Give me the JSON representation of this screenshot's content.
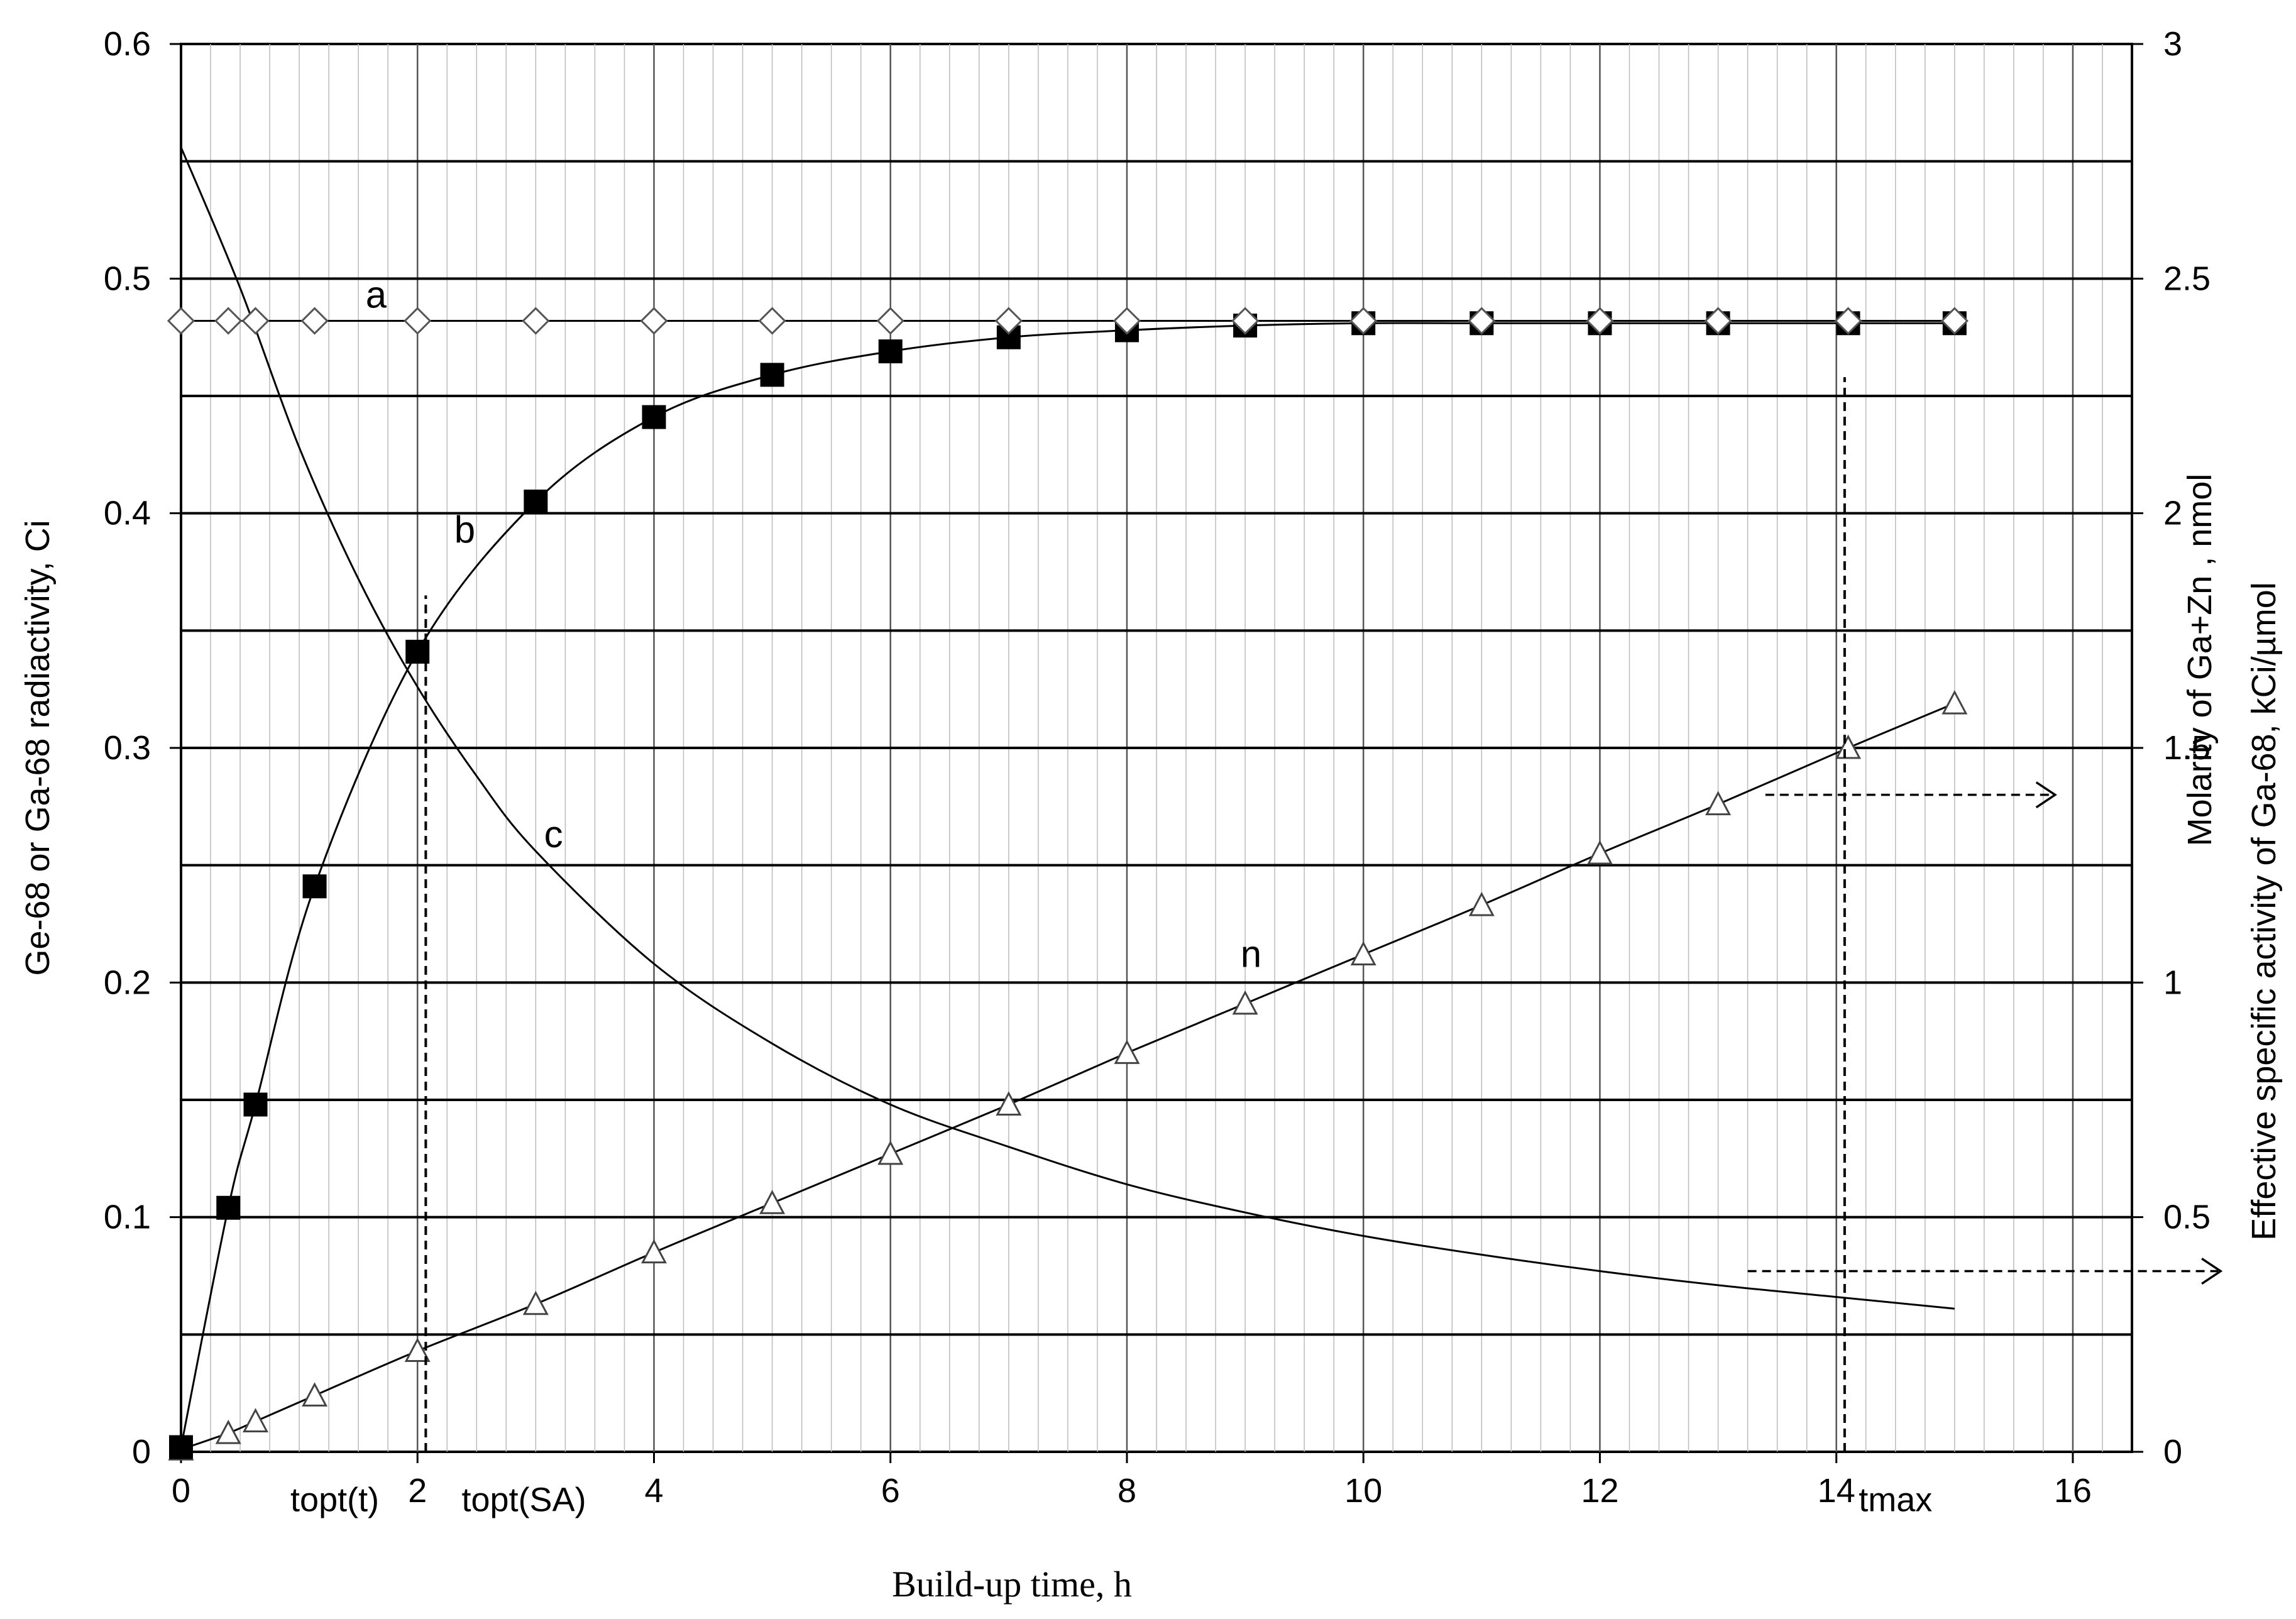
{
  "chart_data": {
    "type": "line",
    "xlabel": "Build-up time, h",
    "ylabel_left": "Ge-68 or Ga-68 radiactivity, Ci",
    "ylabel_right": [
      "Molarity  of Ga+Zn , nmol",
      "Effective specific activity of Ga-68, kCi/µmol"
    ],
    "xlim": [
      0,
      16.5
    ],
    "ylim_left": [
      0,
      0.6
    ],
    "ylim_right": [
      0,
      3
    ],
    "x_ticks": [
      "0",
      "2",
      "4",
      "6",
      "8",
      "10",
      "12",
      "14",
      "16"
    ],
    "y_left_ticks": [
      "0",
      "0.1",
      "0.2",
      "0.3",
      "0.4",
      "0.5",
      "0.6"
    ],
    "y_right_ticks": [
      "0",
      "0.5",
      "1",
      "1.5",
      "2",
      "2.5",
      "3"
    ],
    "grid": true,
    "series": [
      {
        "name": "a",
        "axis": "left",
        "marker": "diamond-open",
        "x": [
          0,
          0.4,
          0.63,
          1.13,
          2,
          3,
          4,
          5,
          6,
          7,
          8,
          9,
          10,
          11,
          12,
          13,
          14.1,
          15
        ],
        "y": [
          0.482,
          0.482,
          0.482,
          0.482,
          0.482,
          0.482,
          0.482,
          0.482,
          0.482,
          0.482,
          0.482,
          0.482,
          0.482,
          0.482,
          0.482,
          0.482,
          0.482,
          0.482
        ]
      },
      {
        "name": "b",
        "axis": "left",
        "marker": "square-filled",
        "x": [
          0,
          0.4,
          0.63,
          1.13,
          2,
          3,
          4,
          5,
          6,
          7,
          8,
          9,
          10,
          11,
          12,
          13,
          14.1,
          15
        ],
        "y": [
          0.002,
          0.104,
          0.148,
          0.241,
          0.341,
          0.405,
          0.441,
          0.459,
          0.469,
          0.475,
          0.478,
          0.48,
          0.481,
          0.481,
          0.481,
          0.481,
          0.481,
          0.481
        ]
      },
      {
        "name": "c",
        "axis": "right",
        "marker": "none",
        "x": [
          0,
          0.5,
          1,
          1.5,
          2,
          2.5,
          3,
          4,
          5,
          6,
          7,
          8,
          9,
          10,
          11,
          12,
          13,
          14,
          15
        ],
        "y": [
          2.78,
          2.48,
          2.14,
          1.86,
          1.63,
          1.44,
          1.28,
          1.04,
          0.87,
          0.74,
          0.65,
          0.57,
          0.51,
          0.46,
          0.42,
          0.385,
          0.355,
          0.33,
          0.305
        ]
      },
      {
        "name": "n",
        "axis": "left",
        "marker": "triangle-open",
        "x": [
          0,
          0.4,
          0.63,
          1.13,
          2,
          3,
          4,
          5,
          6,
          7,
          8,
          9,
          10,
          11,
          12,
          13,
          14.1,
          15
        ],
        "y": [
          0.001,
          0.008,
          0.013,
          0.024,
          0.043,
          0.063,
          0.085,
          0.106,
          0.127,
          0.148,
          0.17,
          0.191,
          0.212,
          0.233,
          0.255,
          0.276,
          0.3,
          0.319
        ]
      }
    ],
    "annotations": [
      {
        "text": "topt(t)",
        "x": 1.3,
        "y": -0.013
      },
      {
        "text": "topt(SA)",
        "x": 2.9,
        "y": -0.013
      },
      {
        "text": "tmax",
        "x": 14.5,
        "y": -0.013
      }
    ],
    "vlines": [
      {
        "x": 2.07,
        "y_from": 0,
        "y_to": 0.365
      },
      {
        "x": 14.07,
        "y_from": 0,
        "y_to": 0.458
      }
    ],
    "arrows": [
      {
        "x_from": 13.4,
        "x_to": 15.85,
        "y": 0.28
      },
      {
        "x_from": 13.25,
        "x_to": 17.25,
        "y": 0.077
      }
    ]
  }
}
